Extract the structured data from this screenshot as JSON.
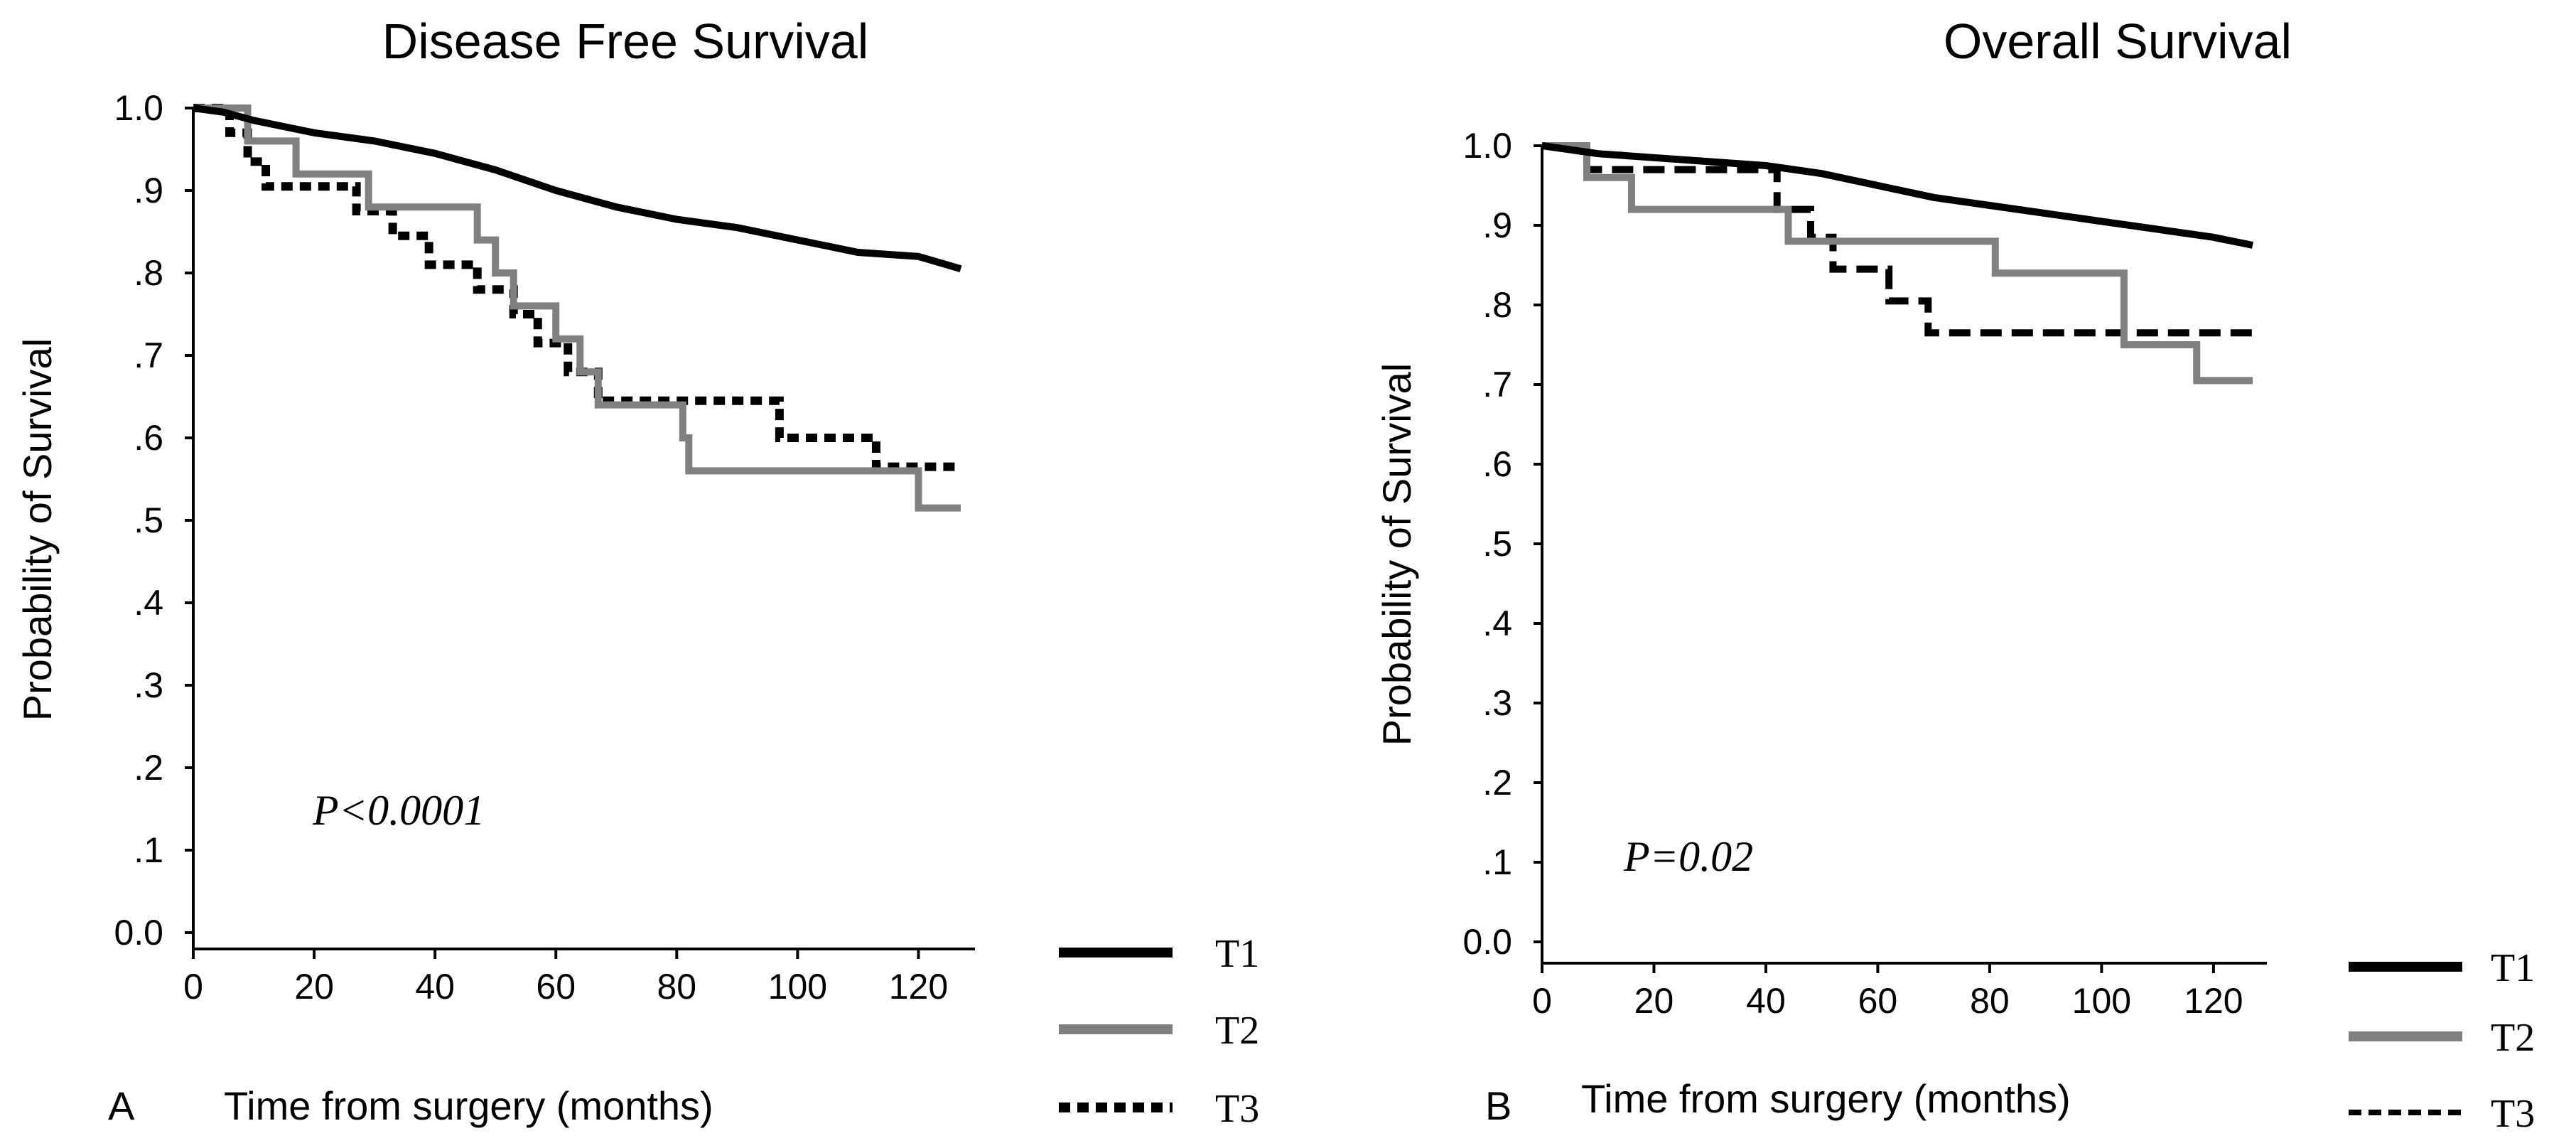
{
  "chart_data": [
    {
      "type": "line",
      "panel_label": "A",
      "title": "Disease Free Survival",
      "xlabel": "Time from surgery (months)",
      "ylabel": "Probability of Survival",
      "xlim": [
        0,
        127
      ],
      "ylim": [
        0,
        1.0
      ],
      "xticks": [
        0,
        20,
        40,
        60,
        80,
        100,
        120
      ],
      "xtick_labels": [
        "0",
        "20",
        "40",
        "60",
        "80",
        "100",
        "120"
      ],
      "yticks": [
        0,
        0.1,
        0.2,
        0.3,
        0.4,
        0.5,
        0.6,
        0.7,
        0.8,
        0.9,
        1.0
      ],
      "ytick_labels": [
        "0.0",
        ".1",
        ".2",
        ".3",
        ".4",
        ".5",
        ".6",
        ".7",
        ".8",
        ".9",
        "1.0"
      ],
      "annotation": "P<0.0001",
      "grid": false,
      "legend_position": "bottom-right outside",
      "series": [
        {
          "name": "T1",
          "color": "#000000",
          "style": "solid",
          "step": false,
          "x": [
            0,
            5,
            10,
            20,
            30,
            40,
            50,
            60,
            70,
            80,
            90,
            100,
            110,
            120,
            127
          ],
          "y": [
            1.0,
            0.995,
            0.985,
            0.97,
            0.96,
            0.945,
            0.925,
            0.9,
            0.88,
            0.865,
            0.855,
            0.84,
            0.825,
            0.82,
            0.805
          ]
        },
        {
          "name": "T2",
          "color": "#808080",
          "style": "solid",
          "step": true,
          "x": [
            0,
            9,
            10,
            17,
            29,
            47,
            50,
            53,
            60,
            64,
            67,
            81,
            82,
            120,
            127
          ],
          "y": [
            1.0,
            0.96,
            0.96,
            0.92,
            0.88,
            0.84,
            0.8,
            0.76,
            0.72,
            0.68,
            0.64,
            0.6,
            0.56,
            0.515,
            0.515
          ]
        },
        {
          "name": "T3",
          "color": "#000000",
          "style": "dotted",
          "step": true,
          "x": [
            0,
            6,
            9,
            12,
            27,
            33,
            39,
            47,
            53,
            57,
            62,
            67,
            82,
            97,
            113,
            127
          ],
          "y": [
            1.0,
            0.97,
            0.935,
            0.905,
            0.875,
            0.845,
            0.81,
            0.78,
            0.75,
            0.715,
            0.68,
            0.645,
            0.645,
            0.6,
            0.565,
            0.565
          ]
        }
      ]
    },
    {
      "type": "line",
      "panel_label": "B",
      "title": "Overall Survival",
      "xlabel": "Time from surgery (months)",
      "ylabel": "Probability of Survival",
      "xlim": [
        0,
        127
      ],
      "ylim": [
        0,
        1.0
      ],
      "xticks": [
        0,
        20,
        40,
        60,
        80,
        100,
        120
      ],
      "xtick_labels": [
        "0",
        "20",
        "40",
        "60",
        "80",
        "100",
        "120"
      ],
      "yticks": [
        0,
        0.1,
        0.2,
        0.3,
        0.4,
        0.5,
        0.6,
        0.7,
        0.8,
        0.9,
        1.0
      ],
      "ytick_labels": [
        "0.0",
        ".1",
        ".2",
        ".3",
        ".4",
        ".5",
        ".6",
        ".7",
        ".8",
        ".9",
        "1.0"
      ],
      "annotation": "P=0.02",
      "grid": false,
      "legend_position": "bottom-right outside",
      "series": [
        {
          "name": "T1",
          "color": "#000000",
          "style": "solid",
          "step": false,
          "x": [
            0,
            10,
            20,
            30,
            40,
            50,
            60,
            70,
            80,
            90,
            100,
            110,
            120,
            127
          ],
          "y": [
            1.0,
            0.99,
            0.985,
            0.98,
            0.975,
            0.965,
            0.95,
            0.935,
            0.925,
            0.915,
            0.905,
            0.895,
            0.885,
            0.875
          ]
        },
        {
          "name": "T2",
          "color": "#808080",
          "style": "solid",
          "step": true,
          "x": [
            0,
            8,
            16,
            44,
            81,
            104,
            117,
            127
          ],
          "y": [
            1.0,
            0.96,
            0.92,
            0.88,
            0.84,
            0.75,
            0.705,
            0.705
          ]
        },
        {
          "name": "T3",
          "color": "#000000",
          "style": "dashed",
          "step": true,
          "x": [
            0,
            8,
            42,
            48,
            52,
            62,
            69,
            127
          ],
          "y": [
            1.0,
            0.97,
            0.92,
            0.885,
            0.845,
            0.805,
            0.765,
            0.765
          ]
        }
      ]
    }
  ]
}
